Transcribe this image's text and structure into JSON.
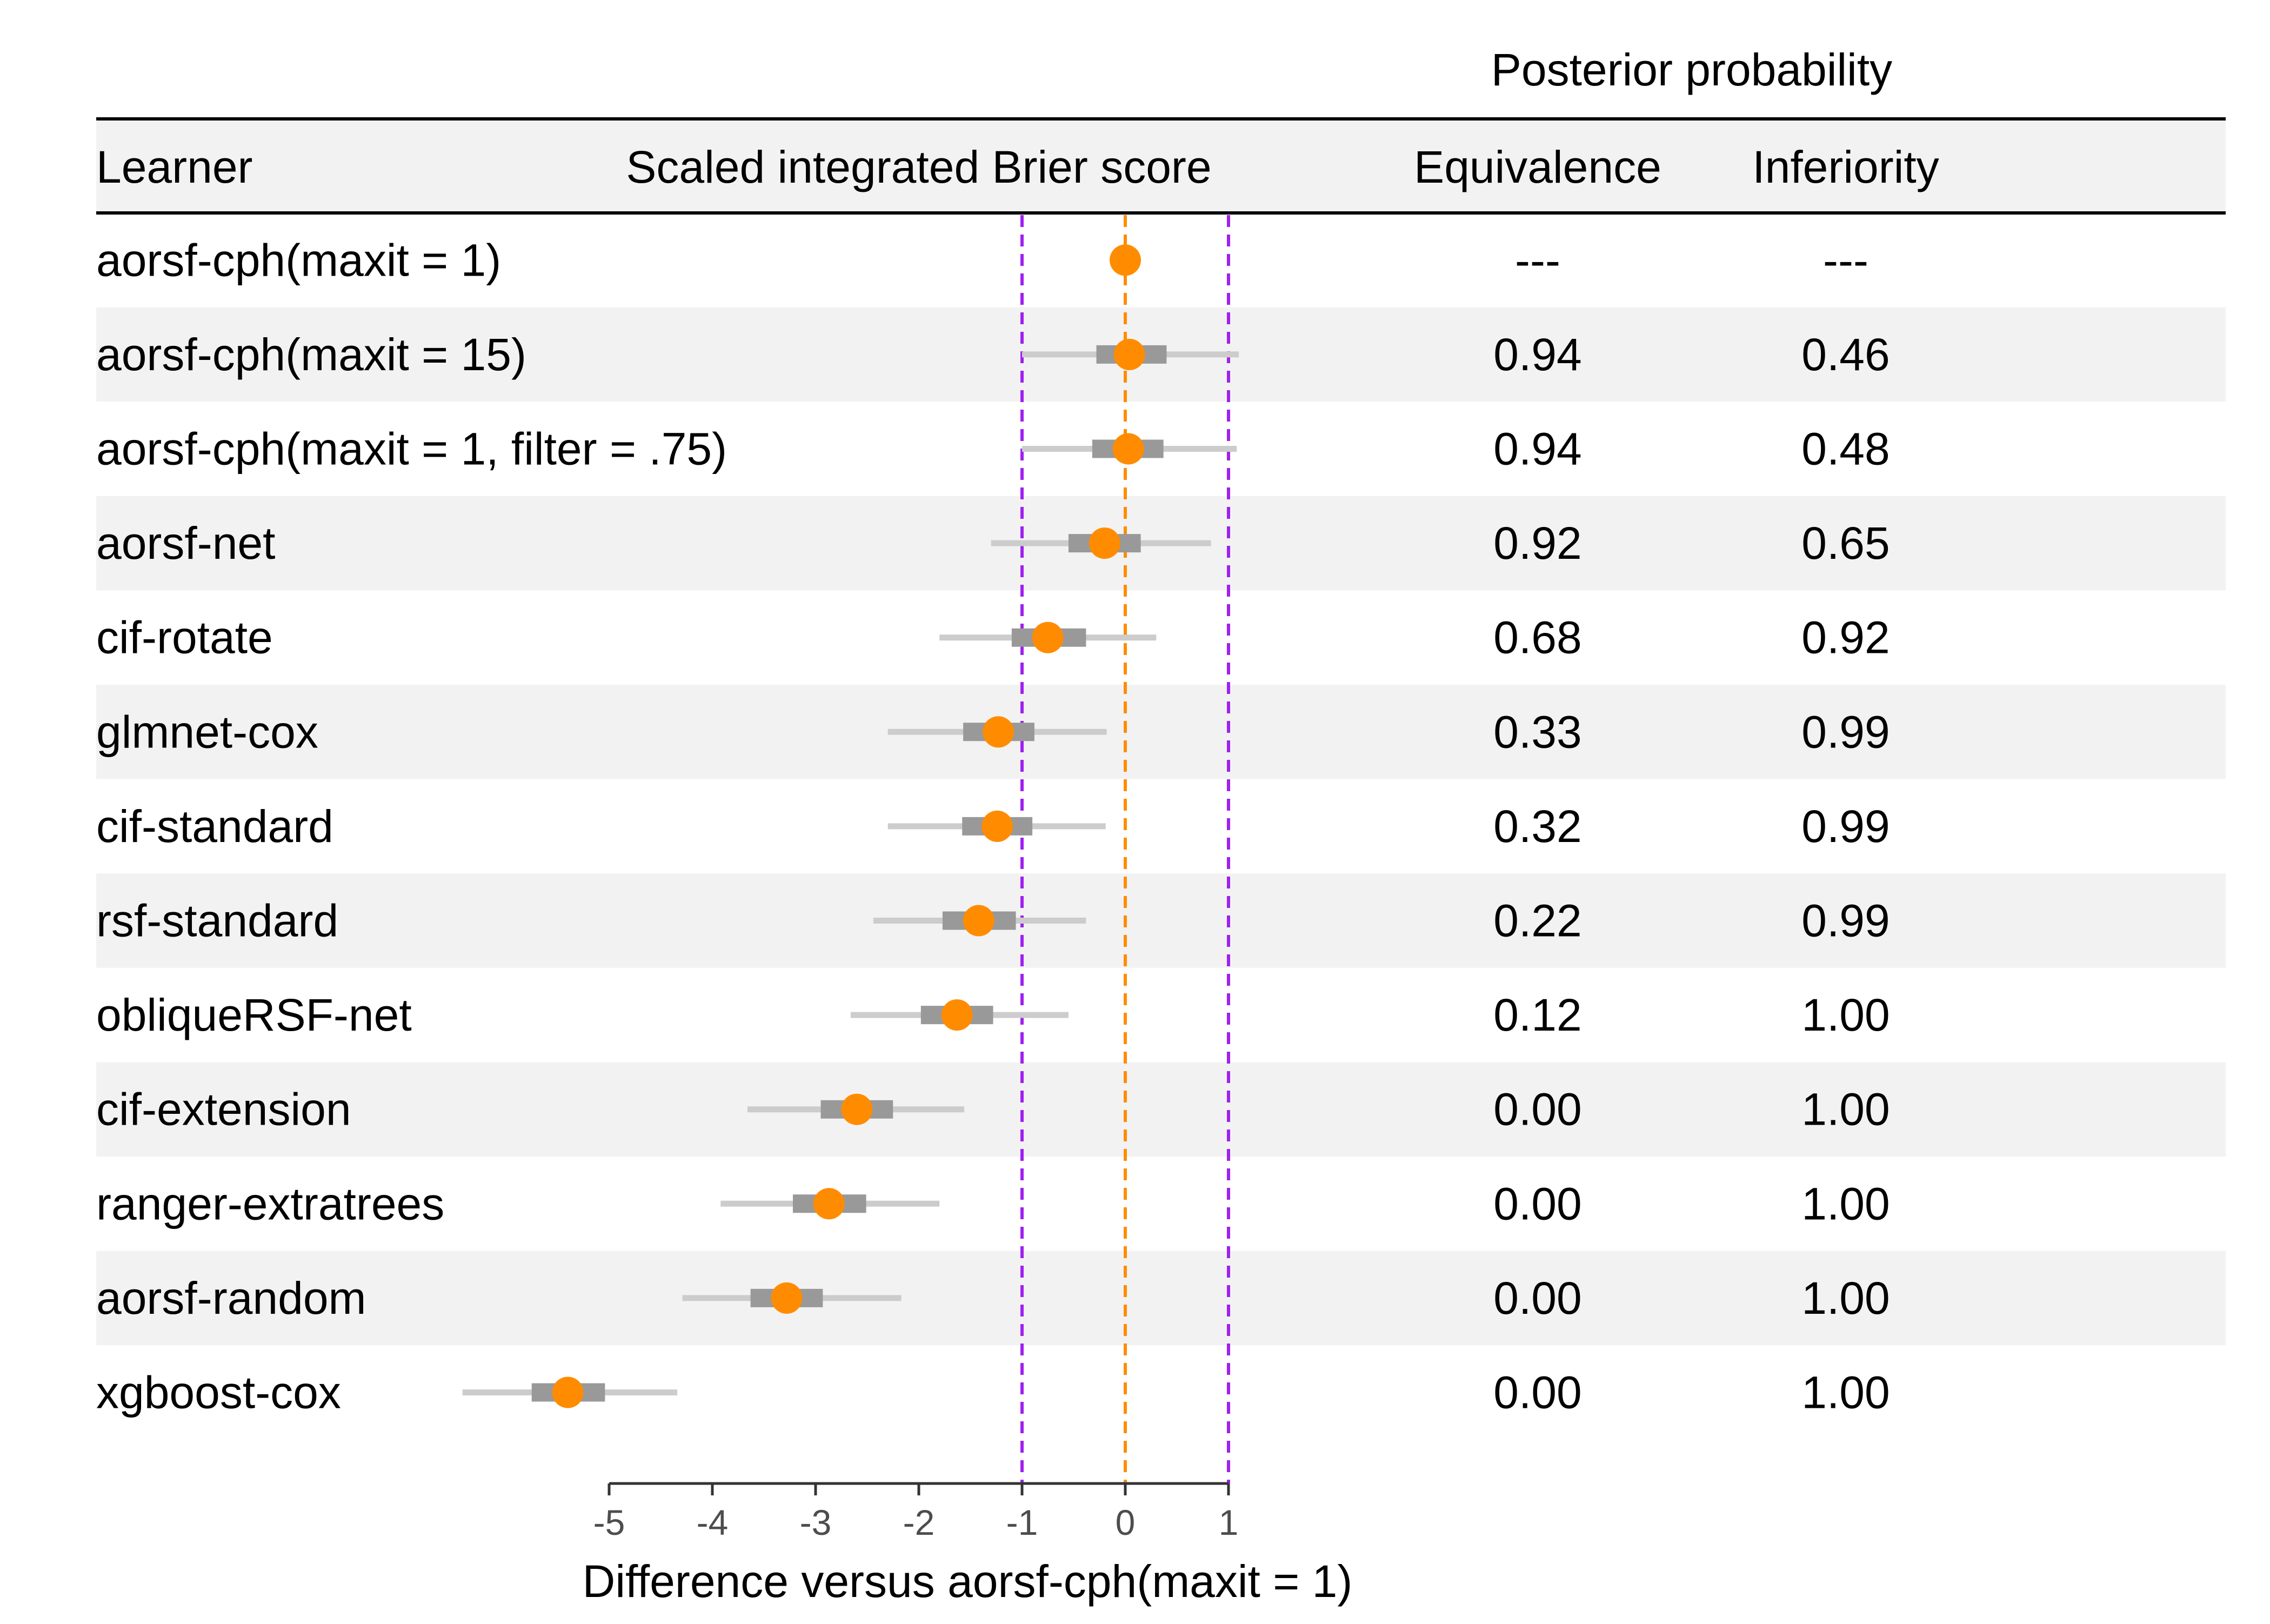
{
  "header": {
    "group_title": "Posterior probability",
    "col_learner": "Learner",
    "col_score": "Scaled integrated Brier score",
    "col_equivalence": "Equivalence",
    "col_inferiority": "Inferiority"
  },
  "colors": {
    "point": "#FF8C00",
    "inner_interval": "#999999",
    "outer_interval": "#CCCCCC",
    "reference_line": "#FF8C00",
    "rope_line": "#A020F0",
    "stripe": "#F2F2F2"
  },
  "chart_data": {
    "type": "forest",
    "title": "Scaled integrated Brier score",
    "xlabel": "Difference versus aorsf-cph(maxit = 1)",
    "xlim": [
      -5,
      1
    ],
    "xticks": [
      -5,
      -4,
      -3,
      -2,
      -1,
      0,
      1
    ],
    "xtick_labels": [
      "-5",
      "-4",
      "-3",
      "-2",
      "-1",
      "0",
      "1"
    ],
    "reference_line": 0,
    "rope": [
      -1,
      1
    ],
    "rows": [
      {
        "learner": "aorsf-cph(maxit = 1)",
        "estimate": 0,
        "inner": null,
        "outer": null,
        "equivalence": "---",
        "inferiority": "---"
      },
      {
        "learner": "aorsf-cph(maxit = 15)",
        "estimate": 0.04,
        "inner": [
          -0.28,
          0.4
        ],
        "outer": [
          -1.0,
          1.1
        ],
        "equivalence": "0.94",
        "inferiority": "0.46"
      },
      {
        "learner": "aorsf-cph(maxit = 1, filter = .75)",
        "estimate": 0.03,
        "inner": [
          -0.32,
          0.37
        ],
        "outer": [
          -1.0,
          1.08
        ],
        "equivalence": "0.94",
        "inferiority": "0.48"
      },
      {
        "learner": "aorsf-net",
        "estimate": -0.2,
        "inner": [
          -0.55,
          0.15
        ],
        "outer": [
          -1.3,
          0.83
        ],
        "equivalence": "0.92",
        "inferiority": "0.65"
      },
      {
        "learner": "cif-rotate",
        "estimate": -0.75,
        "inner": [
          -1.1,
          -0.38
        ],
        "outer": [
          -1.8,
          0.3
        ],
        "equivalence": "0.68",
        "inferiority": "0.92"
      },
      {
        "learner": "glmnet-cox",
        "estimate": -1.23,
        "inner": [
          -1.57,
          -0.88
        ],
        "outer": [
          -2.3,
          -0.18
        ],
        "equivalence": "0.33",
        "inferiority": "0.99"
      },
      {
        "learner": "cif-standard",
        "estimate": -1.24,
        "inner": [
          -1.58,
          -0.9
        ],
        "outer": [
          -2.3,
          -0.19
        ],
        "equivalence": "0.32",
        "inferiority": "0.99"
      },
      {
        "learner": "rsf-standard",
        "estimate": -1.42,
        "inner": [
          -1.77,
          -1.06
        ],
        "outer": [
          -2.44,
          -0.38
        ],
        "equivalence": "0.22",
        "inferiority": "0.99"
      },
      {
        "learner": "obliqueRSF-net",
        "estimate": -1.63,
        "inner": [
          -1.98,
          -1.28
        ],
        "outer": [
          -2.66,
          -0.55
        ],
        "equivalence": "0.12",
        "inferiority": "1.00"
      },
      {
        "learner": "cif-extension",
        "estimate": -2.6,
        "inner": [
          -2.95,
          -2.25
        ],
        "outer": [
          -3.66,
          -1.56
        ],
        "equivalence": "0.00",
        "inferiority": "1.00"
      },
      {
        "learner": "ranger-extratrees",
        "estimate": -2.87,
        "inner": [
          -3.22,
          -2.51
        ],
        "outer": [
          -3.92,
          -1.8
        ],
        "equivalence": "0.00",
        "inferiority": "1.00"
      },
      {
        "learner": "aorsf-random",
        "estimate": -3.28,
        "inner": [
          -3.63,
          -2.93
        ],
        "outer": [
          -4.29,
          -2.17
        ],
        "equivalence": "0.00",
        "inferiority": "1.00"
      },
      {
        "learner": "xgboost-cox",
        "estimate": -5.4,
        "inner": [
          -5.75,
          -5.04
        ],
        "outer": [
          -6.42,
          -4.34
        ],
        "equivalence": "0.00",
        "inferiority": "1.00"
      }
    ]
  }
}
